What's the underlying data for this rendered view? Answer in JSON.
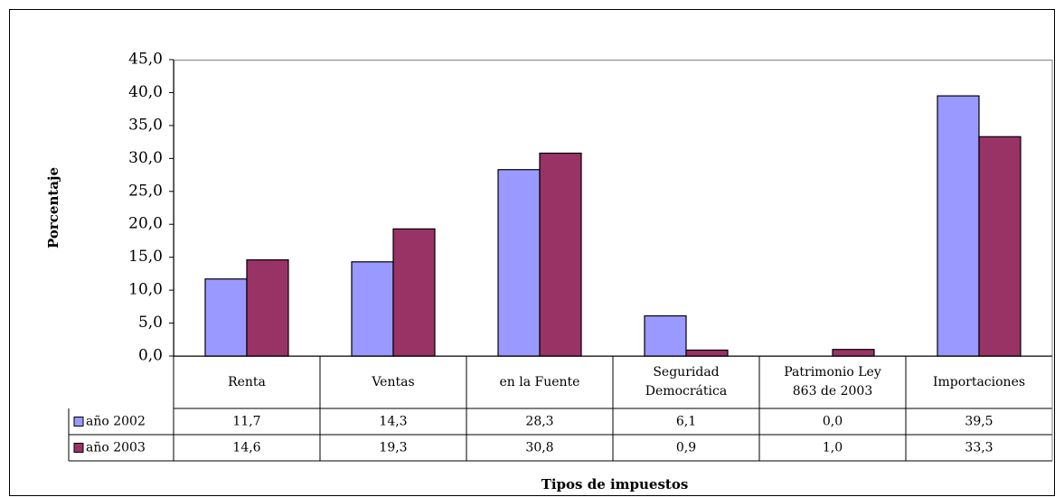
{
  "chart_data": {
    "type": "bar",
    "x_label": "Tipos de impuestos",
    "y_label": "Porcentaje",
    "categories": [
      "Renta",
      "Ventas",
      "en la Fuente",
      "Seguridad Democrática",
      "Patrimonio Ley 863 de 2003",
      "Importaciones"
    ],
    "series": [
      {
        "name": "año 2002",
        "color": "#9999ff",
        "values": [
          11.7,
          14.3,
          28.3,
          6.1,
          0.0,
          39.5
        ],
        "value_labels": [
          "11,7",
          "14,3",
          "28,3",
          "6,1",
          "0,0",
          "39,5"
        ]
      },
      {
        "name": "año 2003",
        "color": "#993366",
        "values": [
          14.6,
          19.3,
          30.8,
          0.9,
          1.0,
          33.3
        ],
        "value_labels": [
          "14,6",
          "19,3",
          "30,8",
          "0,9",
          "1,0",
          "33,3"
        ]
      }
    ],
    "ylim": [
      0,
      45
    ],
    "yticks": [
      {
        "value": 0,
        "label": "0,0"
      },
      {
        "value": 5,
        "label": "5,0"
      },
      {
        "value": 10,
        "label": "10,0"
      },
      {
        "value": 15,
        "label": "15,0"
      },
      {
        "value": 20,
        "label": "20,0"
      },
      {
        "value": 25,
        "label": "25,0"
      },
      {
        "value": 30,
        "label": "30,0"
      },
      {
        "value": 35,
        "label": "35,0"
      },
      {
        "value": 40,
        "label": "40,0"
      },
      {
        "value": 45,
        "label": "45,0"
      }
    ],
    "grid": false
  }
}
